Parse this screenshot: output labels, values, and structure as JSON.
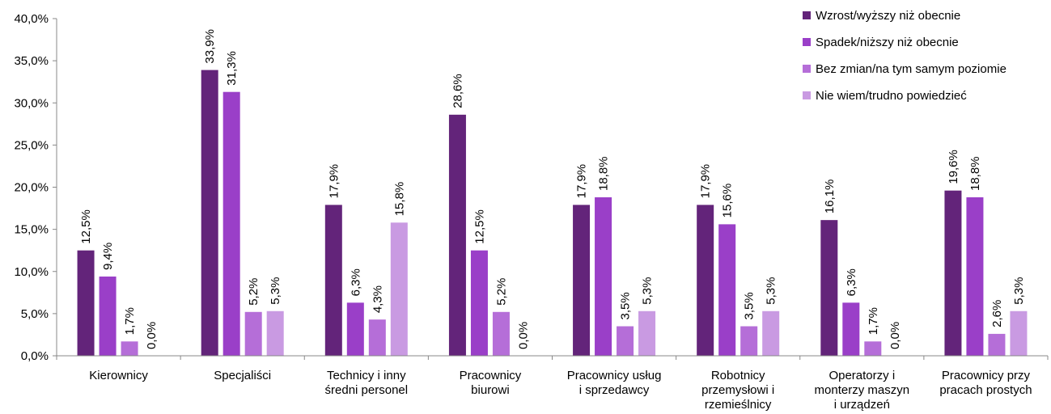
{
  "chart_data": {
    "type": "bar",
    "title": "",
    "xlabel": "",
    "ylabel": "",
    "ylim": [
      0,
      40
    ],
    "y_tick_values": [
      0,
      5,
      10,
      15,
      20,
      25,
      30,
      35,
      40
    ],
    "y_tick_labels": [
      "0,0%",
      "5,0%",
      "10,0%",
      "15,0%",
      "20,0%",
      "25,0%",
      "30,0%",
      "35,0%",
      "40,0%"
    ],
    "grid": false,
    "legend_position": "top-right",
    "categories": [
      [
        "Kierownicy"
      ],
      [
        "Specjaliści"
      ],
      [
        "Technicy i inny",
        "średni personel"
      ],
      [
        "Pracownicy",
        "biurowi"
      ],
      [
        "Pracownicy usług",
        "i sprzedawcy"
      ],
      [
        "Robotnicy",
        "przemysłowi i",
        "rzemieślnicy"
      ],
      [
        "Operatorzy i",
        "monterzy maszyn",
        "i urządzeń"
      ],
      [
        "Pracownicy przy",
        "pracach prostych"
      ]
    ],
    "series": [
      {
        "name": "Wzrost/wyższy niż obecnie",
        "color": "#63247a",
        "values": [
          12.5,
          33.9,
          17.9,
          28.6,
          17.9,
          17.9,
          16.1,
          19.6
        ],
        "labels": [
          "12,5%",
          "33,9%",
          "17,9%",
          "28,6%",
          "17,9%",
          "17,9%",
          "16,1%",
          "19,6%"
        ]
      },
      {
        "name": "Spadek/niższy niż obecnie",
        "color": "#9a3fc8",
        "values": [
          9.4,
          31.3,
          6.3,
          12.5,
          18.8,
          15.6,
          6.3,
          18.8
        ],
        "labels": [
          "9,4%",
          "31,3%",
          "6,3%",
          "12,5%",
          "18,8%",
          "15,6%",
          "6,3%",
          "18,8%"
        ]
      },
      {
        "name": "Bez zmian/na tym samym poziomie",
        "color": "#b56ed8",
        "values": [
          1.7,
          5.2,
          4.3,
          5.2,
          3.5,
          3.5,
          1.7,
          2.6
        ],
        "labels": [
          "1,7%",
          "5,2%",
          "4,3%",
          "5,2%",
          "3,5%",
          "3,5%",
          "1,7%",
          "2,6%"
        ]
      },
      {
        "name": "Nie wiem/trudno powiedzieć",
        "color": "#c99ae2",
        "values": [
          0.0,
          5.3,
          15.8,
          0.0,
          5.3,
          5.3,
          0.0,
          5.3
        ],
        "labels": [
          "0,0%",
          "5,3%",
          "15,8%",
          "0,0%",
          "5,3%",
          "5,3%",
          "0,0%",
          "5,3%"
        ]
      }
    ]
  }
}
